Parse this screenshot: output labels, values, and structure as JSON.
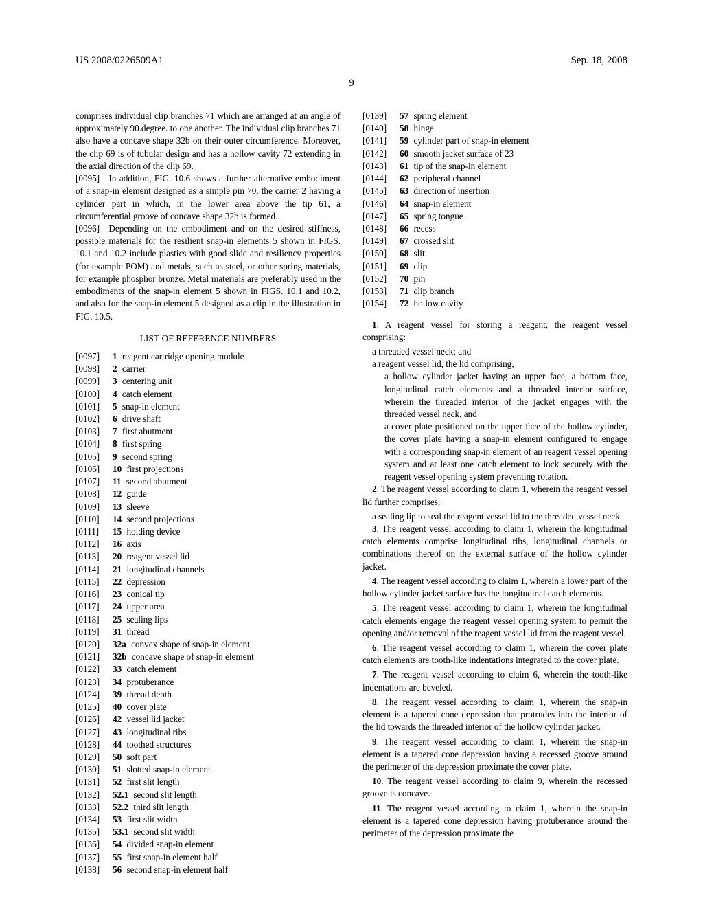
{
  "header": {
    "left": "US 2008/0226509A1",
    "right": "Sep. 18, 2008"
  },
  "pagenum": "9",
  "left_col": {
    "p1": "comprises individual clip branches 71 which are arranged at an angle of approximately 90.degree. to one another. The individual clip branches 71 also have a concave shape 32b on their outer circumference. Moreover, the clip 69 is of tubular design and has a hollow cavity 72 extending in the axial direction of the clip 69.",
    "p2": "[0095] In addition, FIG. 10.6 shows a further alternative embodiment of a snap-in element designed as a simple pin 70, the carrier 2 having a cylinder part in which, in the lower area above the tip 61, a circumferential groove of concave shape 32b is formed.",
    "p3": "[0096] Depending on the embodiment and on the desired stiffness, possible materials for the resilient snap-in elements 5 shown in FIGS. 10.1 and 10.2 include plastics with good slide and resiliency properties (for example POM) and metals, such as steel, or other spring materials, for example phosphor bronze. Metal materials are preferably used in the embodiments of the snap-in element 5 shown in FIGS. 10.1 and 10.2, and also for the snap-in element 5 designed as a clip in the illustration in FIG. 10.5.",
    "section_title": "LIST OF REFERENCE NUMBERS",
    "refs": [
      {
        "n": "[0097]",
        "b": "1",
        "t": "reagent cartridge opening module"
      },
      {
        "n": "[0098]",
        "b": "2",
        "t": "carrier"
      },
      {
        "n": "[0099]",
        "b": "3",
        "t": "centering unit"
      },
      {
        "n": "[0100]",
        "b": "4",
        "t": "catch element"
      },
      {
        "n": "[0101]",
        "b": "5",
        "t": "snap-in element"
      },
      {
        "n": "[0102]",
        "b": "6",
        "t": "drive shaft"
      },
      {
        "n": "[0103]",
        "b": "7",
        "t": "first abutment"
      },
      {
        "n": "[0104]",
        "b": "8",
        "t": "first spring"
      },
      {
        "n": "[0105]",
        "b": "9",
        "t": "second spring"
      },
      {
        "n": "[0106]",
        "b": "10",
        "t": "first projections"
      },
      {
        "n": "[0107]",
        "b": "11",
        "t": "second abutment"
      },
      {
        "n": "[0108]",
        "b": "12",
        "t": "guide"
      },
      {
        "n": "[0109]",
        "b": "13",
        "t": "sleeve"
      },
      {
        "n": "[0110]",
        "b": "14",
        "t": "second projections"
      },
      {
        "n": "[0111]",
        "b": "15",
        "t": "holding device"
      },
      {
        "n": "[0112]",
        "b": "16",
        "t": "axis"
      },
      {
        "n": "[0113]",
        "b": "20",
        "t": "reagent vessel lid"
      },
      {
        "n": "[0114]",
        "b": "21",
        "t": "longitudinal channels"
      },
      {
        "n": "[0115]",
        "b": "22",
        "t": "depression"
      },
      {
        "n": "[0116]",
        "b": "23",
        "t": "conical tip"
      },
      {
        "n": "[0117]",
        "b": "24",
        "t": "upper area"
      },
      {
        "n": "[0118]",
        "b": "25",
        "t": "sealing lips"
      },
      {
        "n": "[0119]",
        "b": "31",
        "t": "thread"
      },
      {
        "n": "[0120]",
        "b": "32a",
        "t": "convex shape of snap-in element"
      },
      {
        "n": "[0121]",
        "b": "32b",
        "t": "concave shape of snap-in element"
      },
      {
        "n": "[0122]",
        "b": "33",
        "t": "catch element"
      },
      {
        "n": "[0123]",
        "b": "34",
        "t": "protuberance"
      },
      {
        "n": "[0124]",
        "b": "39",
        "t": "thread depth"
      },
      {
        "n": "[0125]",
        "b": "40",
        "t": "cover plate"
      },
      {
        "n": "[0126]",
        "b": "42",
        "t": "vessel lid jacket"
      },
      {
        "n": "[0127]",
        "b": "43",
        "t": "longitudinal ribs"
      },
      {
        "n": "[0128]",
        "b": "44",
        "t": "toothed structures"
      },
      {
        "n": "[0129]",
        "b": "50",
        "t": "soft part"
      },
      {
        "n": "[0130]",
        "b": "51",
        "t": "slotted snap-in element"
      },
      {
        "n": "[0131]",
        "b": "52",
        "t": "first slit length"
      },
      {
        "n": "[0132]",
        "b": "52.1",
        "t": "second slit length"
      },
      {
        "n": "[0133]",
        "b": "52.2",
        "t": "third slit length"
      },
      {
        "n": "[0134]",
        "b": "53",
        "t": "first slit width"
      },
      {
        "n": "[0135]",
        "b": "53.1",
        "t": "second slit width"
      },
      {
        "n": "[0136]",
        "b": "54",
        "t": "divided snap-in element"
      },
      {
        "n": "[0137]",
        "b": "55",
        "t": "first snap-in element half"
      },
      {
        "n": "[0138]",
        "b": "56",
        "t": "second snap-in element half"
      }
    ]
  },
  "right_col": {
    "refs": [
      {
        "n": "[0139]",
        "b": "57",
        "t": "spring element"
      },
      {
        "n": "[0140]",
        "b": "58",
        "t": "hinge"
      },
      {
        "n": "[0141]",
        "b": "59",
        "t": "cylinder part of snap-in element"
      },
      {
        "n": "[0142]",
        "b": "60",
        "t": "smooth jacket surface of 23"
      },
      {
        "n": "[0143]",
        "b": "61",
        "t": "tip of the snap-in element"
      },
      {
        "n": "[0144]",
        "b": "62",
        "t": "peripheral channel"
      },
      {
        "n": "[0145]",
        "b": "63",
        "t": "direction of insertion"
      },
      {
        "n": "[0146]",
        "b": "64",
        "t": "snap-in element"
      },
      {
        "n": "[0147]",
        "b": "65",
        "t": "spring tongue"
      },
      {
        "n": "[0148]",
        "b": "66",
        "t": "recess"
      },
      {
        "n": "[0149]",
        "b": "67",
        "t": "crossed slit"
      },
      {
        "n": "[0150]",
        "b": "68",
        "t": "slit"
      },
      {
        "n": "[0151]",
        "b": "69",
        "t": "clip"
      },
      {
        "n": "[0152]",
        "b": "70",
        "t": "pin"
      },
      {
        "n": "[0153]",
        "b": "71",
        "t": "clip branch"
      },
      {
        "n": "[0154]",
        "b": "72",
        "t": "hollow cavity"
      }
    ],
    "c1a": "1. A reagent vessel for storing a reagent, the reagent vessel comprising:",
    "c1b": "a threaded vessel neck; and",
    "c1c": "a reagent vessel lid, the lid comprising,",
    "c1d": "a hollow cylinder jacket having an upper face, a bottom face, longitudinal catch elements and a threaded interior surface, wherein the threaded interior of the jacket engages with the threaded vessel neck, and",
    "c1e": "a cover plate positioned on the upper face of the hollow cylinder, the cover plate having a snap-in element configured to engage with a corresponding snap-in element of an reagent vessel opening system and at least one catch element to lock securely with the reagent vessel opening system preventing rotation.",
    "c2a": "2. The reagent vessel according to claim 1, wherein the reagent vessel lid further comprises,",
    "c2b": "a sealing lip to seal the reagent vessel lid to the threaded vessel neck.",
    "c3": "3. The reagent vessel according to claim 1, wherein the longitudinal catch elements comprise longitudinal ribs, longitudinal channels or combinations thereof on the external surface of the hollow cylinder jacket.",
    "c4": "4. The reagent vessel according to claim 1, wherein a lower part of the hollow cylinder jacket surface has the longitudinal catch elements.",
    "c5": "5. The reagent vessel according to claim 1, wherein the longitudinal catch elements engage the reagent vessel opening system to permit the opening and/or removal of the reagent vessel lid from the reagent vessel.",
    "c6": "6. The reagent vessel according to claim 1, wherein the cover plate catch elements are tooth-like indentations integrated to the cover plate.",
    "c7": "7. The reagent vessel according to claim 6, wherein the tooth-like indentations are beveled.",
    "c8": "8. The reagent vessel according to claim 1, wherein the snap-in element is a tapered cone depression that protrudes into the interior of the lid towards the threaded interior of the hollow cylinder jacket.",
    "c9": "9. The reagent vessel according to claim 1, wherein the snap-in element is a tapered cone depression having a recessed groove around the perimeter of the depression proximate the cover plate.",
    "c10": "10. The reagent vessel according to claim 9, wherein the recessed groove is concave.",
    "c11": "11. The reagent vessel according to claim 1, wherein the snap-in element is a tapered cone depression having protuberance around the perimeter of the depression proximate the"
  }
}
